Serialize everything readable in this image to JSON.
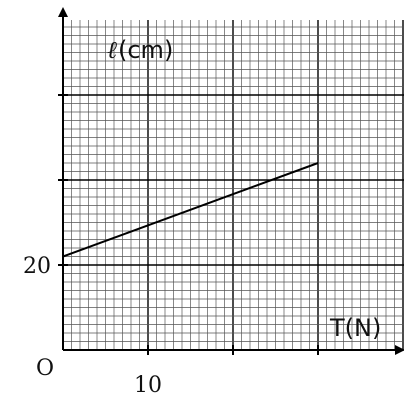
{
  "chart_data": {
    "type": "line",
    "title": "",
    "xlabel": "T(N)",
    "ylabel_symbol": "ℓ",
    "ylabel_unit": "(cm)",
    "origin_label": "O",
    "x_tick_labels": [
      {
        "value": 10,
        "label": "10"
      }
    ],
    "y_tick_labels": [
      {
        "value": 20,
        "label": "20"
      }
    ],
    "xlim": [
      0,
      40
    ],
    "ylim": [
      15,
      35
    ],
    "grid": true,
    "series": [
      {
        "x": [
          0,
          30
        ],
        "y": [
          20.5,
          26
        ]
      }
    ],
    "colors": {
      "grid_minor": "#555555",
      "grid_major": "#000000",
      "line": "#000000"
    }
  }
}
